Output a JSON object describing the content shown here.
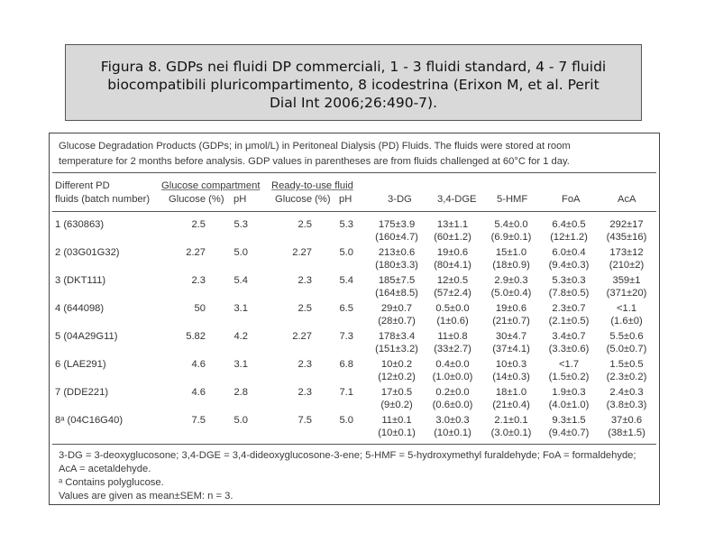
{
  "caption": {
    "line1": "Figura 8. GDPs nei fluidi DP commerciali, 1 - 3 fluidi standard, 4 - 7 fluidi",
    "line2": "biocompatibili pluricompartimento, 8 icodestrina (Erixon M, et al. Perit",
    "line3": "Dial Int 2006;26:490-7)."
  },
  "table": {
    "title_line1": "Glucose Degradation Products (GDPs; in μmol/L) in Peritoneal Dialysis (PD) Fluids. The fluids were stored at room",
    "title_line2": "temperature for 2 months before analysis. GDP values in parentheses are from fluids challenged at 60°C for 1 day.",
    "headers": {
      "fluid_line1": "Different PD",
      "fluid_line2": "fluids (batch number)",
      "group1": "Glucose compartment",
      "group2": "Ready-to-use fluid",
      "glucose1": "Glucose (%)",
      "ph1": "pH",
      "glucose2": "Glucose (%)",
      "ph2": "pH",
      "dg3": "3-DG",
      "dge": "3,4-DGE",
      "hmf": "5-HMF",
      "foa": "FoA",
      "aca": "AcA"
    },
    "rows": [
      {
        "fluid": "1 (630863)",
        "g1": "2.5",
        "p1": "5.3",
        "g2": "2.5",
        "p2": "5.3",
        "dg": "175±3.9",
        "dg_b": "(160±4.7)",
        "dge": "13±1.1",
        "dge_b": "(60±1.2)",
        "hmf": "5.4±0.0",
        "hmf_b": "(6.9±0.1)",
        "foa": "6.4±0.5",
        "foa_b": "(12±1.2)",
        "aca": "292±17",
        "aca_b": "(435±16)"
      },
      {
        "fluid": "2 (03G01G32)",
        "g1": "2.27",
        "p1": "5.0",
        "g2": "2.27",
        "p2": "5.0",
        "dg": "213±0.6",
        "dg_b": "(180±3.3)",
        "dge": "19±0.6",
        "dge_b": "(80±4.1)",
        "hmf": "15±1.0",
        "hmf_b": "(18±0.9)",
        "foa": "6.0±0.4",
        "foa_b": "(9.4±0.3)",
        "aca": "173±12",
        "aca_b": "(210±2)"
      },
      {
        "fluid": "3 (DKT111)",
        "g1": "2.3",
        "p1": "5.4",
        "g2": "2.3",
        "p2": "5.4",
        "dg": "185±7.5",
        "dg_b": "(164±8.5)",
        "dge": "12±0.5",
        "dge_b": "(57±2.4)",
        "hmf": "2.9±0.3",
        "hmf_b": "(5.0±0.4)",
        "foa": "5.3±0.3",
        "foa_b": "(7.8±0.5)",
        "aca": "359±1",
        "aca_b": "(371±20)"
      },
      {
        "fluid": "4 (644098)",
        "g1": "50",
        "p1": "3.1",
        "g2": "2.5",
        "p2": "6.5",
        "dg": "29±0.7",
        "dg_b": "(28±0.7)",
        "dge": "0.5±0.0",
        "dge_b": "(1±0.6)",
        "hmf": "19±0.6",
        "hmf_b": "(21±0.7)",
        "foa": "2.3±0.7",
        "foa_b": "(2.1±0.5)",
        "aca": "<1.1",
        "aca_b": "(1.6±0)"
      },
      {
        "fluid": "5 (04A29G11)",
        "g1": "5.82",
        "p1": "4.2",
        "g2": "2.27",
        "p2": "7.3",
        "dg": "178±3.4",
        "dg_b": "(151±3.2)",
        "dge": "11±0.8",
        "dge_b": "(33±2.7)",
        "hmf": "30±4.7",
        "hmf_b": "(37±4.1)",
        "foa": "3.4±0.7",
        "foa_b": "(3.3±0.6)",
        "aca": "5.5±0.6",
        "aca_b": "(5.0±0.7)"
      },
      {
        "fluid": "6 (LAE291)",
        "g1": "4.6",
        "p1": "3.1",
        "g2": "2.3",
        "p2": "6.8",
        "dg": "10±0.2",
        "dg_b": "(12±0.2)",
        "dge": "0.4±0.0",
        "dge_b": "(1.0±0.0)",
        "hmf": "10±0.3",
        "hmf_b": "(14±0.3)",
        "foa": "<1.7",
        "foa_b": "(1.5±0.2)",
        "aca": "1.5±0.5",
        "aca_b": "(2.3±0.2)"
      },
      {
        "fluid": "7 (DDE221)",
        "g1": "4.6",
        "p1": "2.8",
        "g2": "2.3",
        "p2": "7.1",
        "dg": "17±0.5",
        "dg_b": "(9±0.2)",
        "dge": "0.2±0.0",
        "dge_b": "(0.6±0.0)",
        "hmf": "18±1.0",
        "hmf_b": "(21±0.4)",
        "foa": "1.9±0.3",
        "foa_b": "(4.0±1.0)",
        "aca": "2.4±0.3",
        "aca_b": "(3.8±0.3)"
      },
      {
        "fluid": "8ᵃ (04C16G40)",
        "g1": "7.5",
        "p1": "5.0",
        "g2": "7.5",
        "p2": "5.0",
        "dg": "11±0.1",
        "dg_b": "(10±0.1)",
        "dge": "3.0±0.3",
        "dge_b": "(10±0.1)",
        "hmf": "2.1±0.1",
        "hmf_b": "(3.0±0.1)",
        "foa": "9.3±1.5",
        "foa_b": "(9.4±0.7)",
        "aca": "37±0.6",
        "aca_b": "(38±1.5)"
      }
    ],
    "footnote1": "3-DG = 3-deoxyglucosone; 3,4-DGE = 3,4-dideoxyglucosone-3-ene; 5-HMF = 5-hydroxymethyl furaldehyde; FoA = formaldehyde;",
    "footnote2": "AcA = acetaldehyde.",
    "footnote3": "ᵃ Contains polyglucose.",
    "footnote4": "Values are given as mean±SEM: n = 3."
  }
}
